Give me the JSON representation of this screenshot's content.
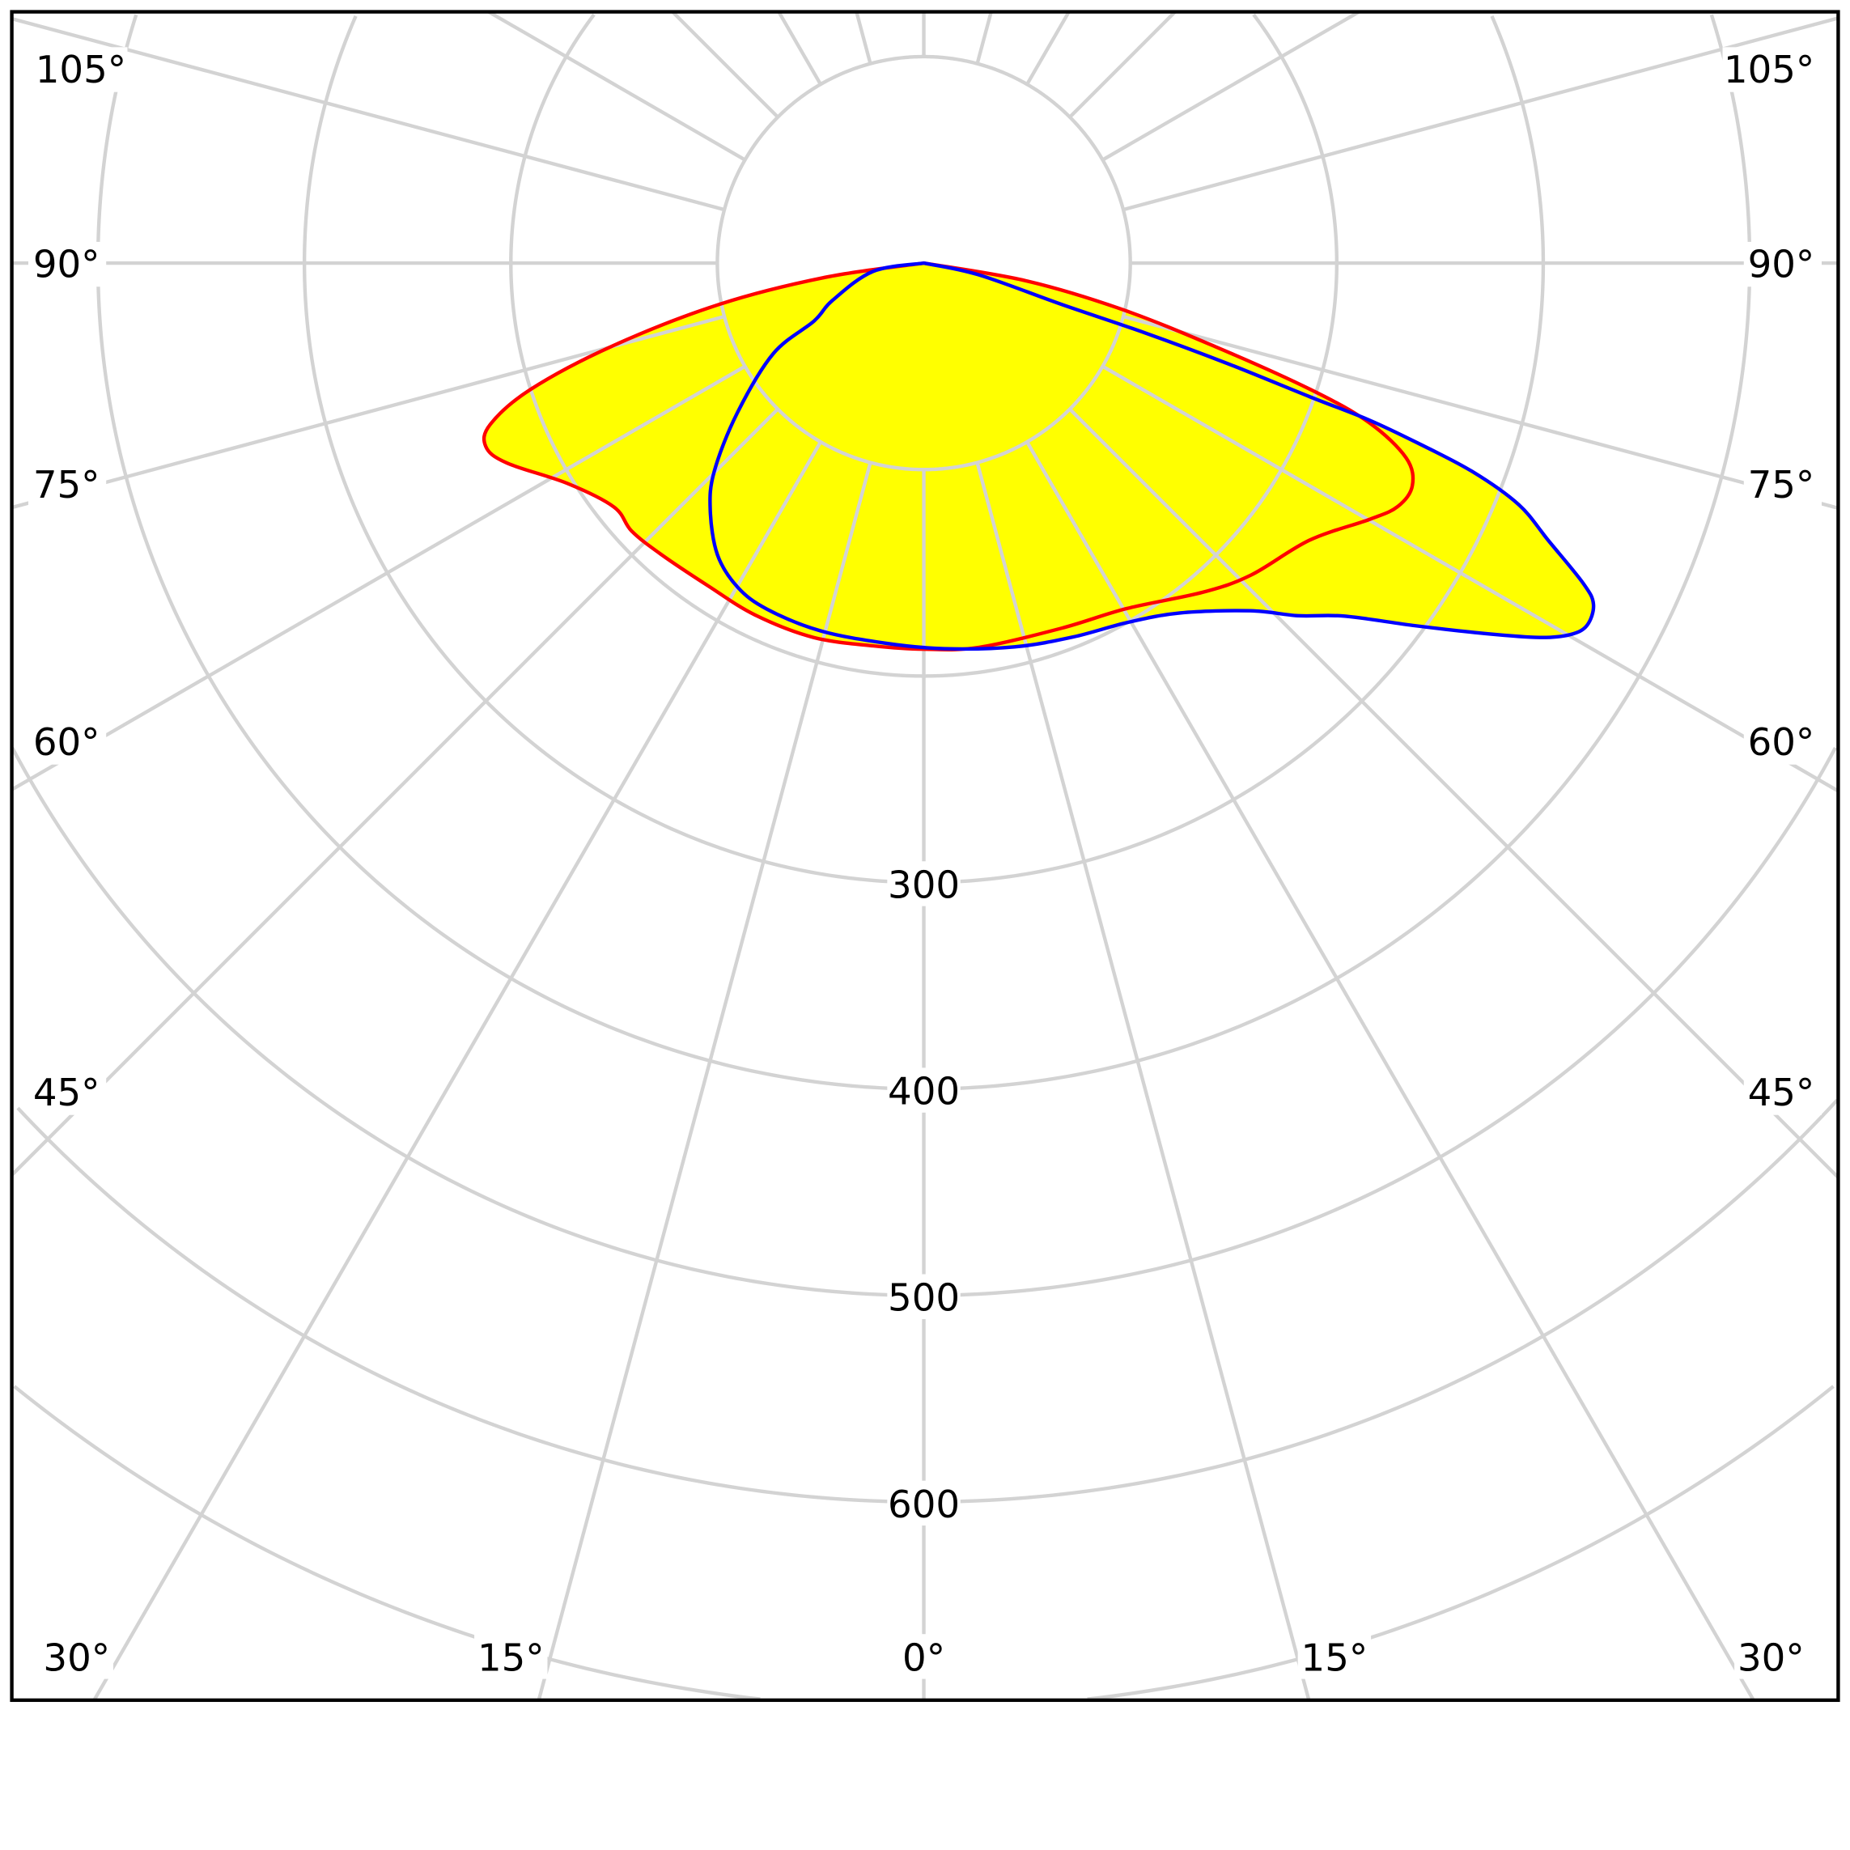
{
  "chart_data": {
    "type": "polar-line",
    "angle_unit": "degrees",
    "zero_direction": "down",
    "radial_max": 700,
    "radial_rings": [
      100,
      200,
      300,
      400,
      500,
      600,
      700
    ],
    "radial_tick_labels": [
      "300",
      "400",
      "500",
      "600"
    ],
    "angle_tick_labels": {
      "left": [
        "105°",
        "90°",
        "75°",
        "60°",
        "45°"
      ],
      "right": [
        "105°",
        "90°",
        "75°",
        "60°",
        "45°"
      ],
      "bottom": [
        "30°",
        "15°",
        "0°",
        "15°",
        "30°"
      ]
    },
    "spoke_step_deg": 15,
    "grid": true,
    "fill_color": "#ffff00",
    "grid_color": "#d3d3d3",
    "series": [
      {
        "color": "#ff0000",
        "points": [
          [
            -90,
            0
          ],
          [
            -81.8,
            48
          ],
          [
            -78.6,
            101
          ],
          [
            -75.1,
            156
          ],
          [
            -72.2,
            200
          ],
          [
            -69.6,
            224
          ],
          [
            -67.3,
            230
          ],
          [
            -64.4,
            224
          ],
          [
            -58.3,
            203
          ],
          [
            -51.8,
            191
          ],
          [
            -47.5,
            192
          ],
          [
            -42.1,
            190
          ],
          [
            -33.7,
            188
          ],
          [
            -25.6,
            189
          ],
          [
            -16.4,
            189
          ],
          [
            -7.5,
            187
          ],
          [
            0,
            187
          ],
          [
            8.2,
            188
          ],
          [
            20.7,
            189
          ],
          [
            30.4,
            194
          ],
          [
            40.3,
            209
          ],
          [
            46.4,
            219
          ],
          [
            54.3,
            230
          ],
          [
            60.1,
            249
          ],
          [
            62.8,
            258
          ],
          [
            65.5,
            260
          ],
          [
            68,
            252
          ],
          [
            70.3,
            229
          ],
          [
            71.9,
            197
          ],
          [
            74,
            147
          ],
          [
            76.9,
            98
          ],
          [
            80.2,
            50
          ],
          [
            90,
            0
          ]
        ]
      },
      {
        "color": "#0000ff",
        "points": [
          [
            -90,
            0
          ],
          [
            -80.7,
            25
          ],
          [
            -67.7,
            48
          ],
          [
            -62.2,
            60
          ],
          [
            -59,
            85
          ],
          [
            -51.2,
            116
          ],
          [
            -45.2,
            143
          ],
          [
            -40.9,
            158
          ],
          [
            -35.3,
            173
          ],
          [
            -29.9,
            181
          ],
          [
            -24.4,
            184
          ],
          [
            -15.75,
            185
          ],
          [
            -5.85,
            185
          ],
          [
            3,
            187
          ],
          [
            13.3,
            191
          ],
          [
            21.8,
            195
          ],
          [
            29.5,
            200
          ],
          [
            36.2,
            210
          ],
          [
            43.2,
            231
          ],
          [
            46.7,
            249
          ],
          [
            50,
            266
          ],
          [
            53.6,
            296
          ],
          [
            56.6,
            326
          ],
          [
            58.7,
            349
          ],
          [
            60.1,
            361
          ],
          [
            61.35,
            366
          ],
          [
            63,
            364
          ],
          [
            64.1,
            355
          ],
          [
            66.05,
            331
          ],
          [
            67.9,
            311
          ],
          [
            69.2,
            284
          ],
          [
            70,
            254
          ],
          [
            70.6,
            228
          ],
          [
            70.9,
            198
          ],
          [
            71.7,
            155
          ],
          [
            72.5,
            112
          ],
          [
            73.3,
            70
          ],
          [
            78,
            27
          ],
          [
            90,
            0
          ]
        ]
      }
    ]
  }
}
